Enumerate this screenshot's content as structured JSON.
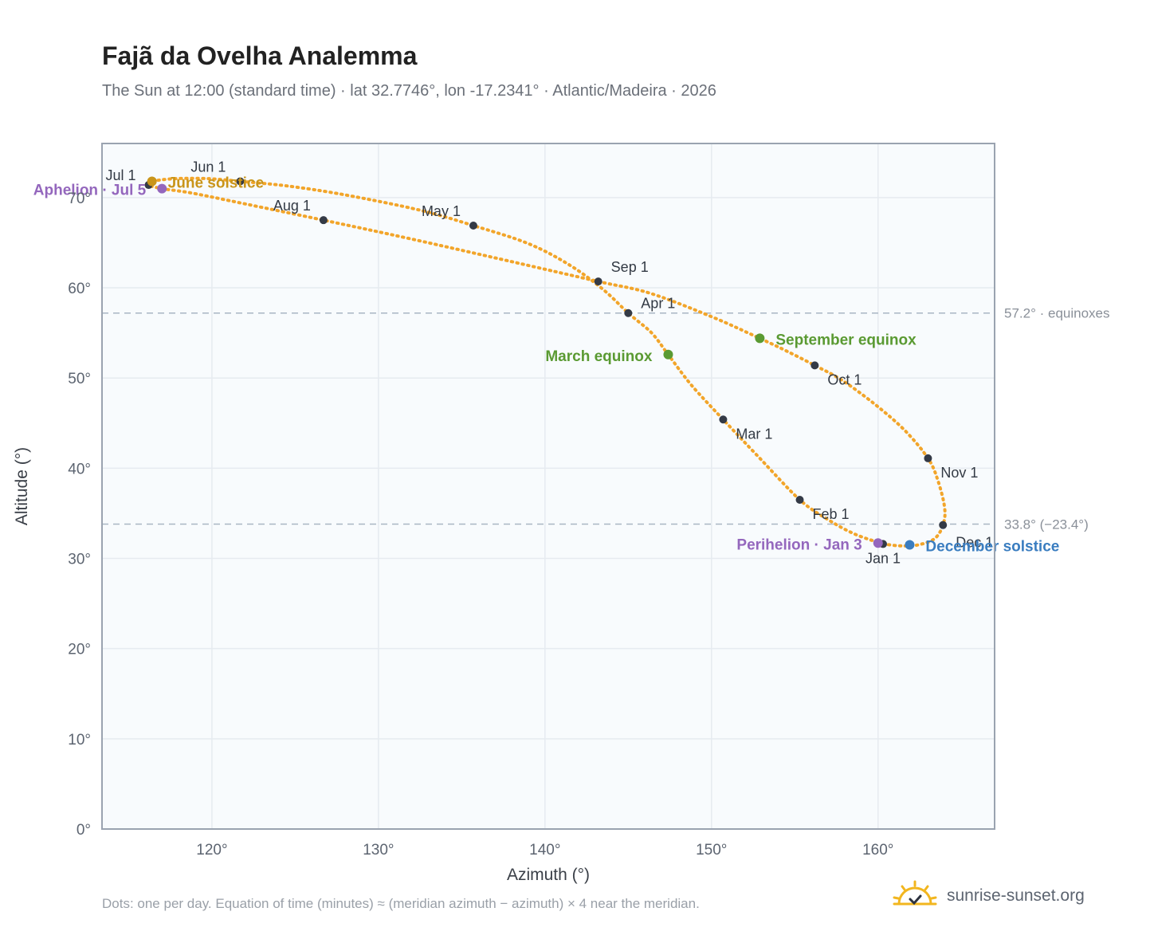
{
  "header": {
    "title": "Fajã da Ovelha Analemma",
    "subtitle": "The Sun at 12:00 (standard time) · lat 32.7746°, lon -17.2341° · Atlantic/Madeira · 2026"
  },
  "footer": {
    "note": "Dots: one per day. Equation of time (minutes) ≈ (meridian azimuth − azimuth) × 4 near the meridian.",
    "brand": "sunrise-sunset.org",
    "brand_icon": "sun-icon"
  },
  "colors": {
    "path": "#f2a52a",
    "month_dot": "#343a46",
    "equinox": "#5a9a32",
    "solstice_june": "#c9951a",
    "solstice_december": "#3a7dc0",
    "apsis": "#9467bd",
    "reference_line": "#a9b6c4",
    "plot_background": "#f8fbfd",
    "grid": "#e6ebf0"
  },
  "chart_data": {
    "type": "scatter",
    "title": "Fajã da Ovelha Analemma",
    "xlabel": "Azimuth (°)",
    "ylabel": "Altitude (°)",
    "xlim": [
      113.4,
      167
    ],
    "ylim": [
      0,
      76
    ],
    "x_ticks": [
      120,
      130,
      140,
      150,
      160
    ],
    "x_tick_labels": [
      "120°",
      "130°",
      "140°",
      "150°",
      "160°"
    ],
    "y_ticks": [
      0,
      10,
      20,
      30,
      40,
      50,
      60,
      70
    ],
    "y_tick_labels": [
      "0°",
      "10°",
      "20°",
      "30°",
      "40°",
      "50°",
      "60°",
      "70°"
    ],
    "grid": true,
    "path_points": [
      {
        "x": 160.3,
        "y": 31.6
      },
      {
        "x": 161.3,
        "y": 31.4
      },
      {
        "x": 162.4,
        "y": 31.5
      },
      {
        "x": 163.4,
        "y": 32.2
      },
      {
        "x": 163.9,
        "y": 33.7
      },
      {
        "x": 164.0,
        "y": 35.6
      },
      {
        "x": 163.6,
        "y": 38.6
      },
      {
        "x": 163.0,
        "y": 41.1
      },
      {
        "x": 161.6,
        "y": 44.2
      },
      {
        "x": 159.8,
        "y": 47.1
      },
      {
        "x": 157.8,
        "y": 49.8
      },
      {
        "x": 156.2,
        "y": 51.4
      },
      {
        "x": 154.5,
        "y": 53.0
      },
      {
        "x": 152.9,
        "y": 54.4
      },
      {
        "x": 150.0,
        "y": 56.8
      },
      {
        "x": 146.3,
        "y": 59.4
      },
      {
        "x": 143.2,
        "y": 60.7
      },
      {
        "x": 138.0,
        "y": 62.9
      },
      {
        "x": 132.0,
        "y": 65.4
      },
      {
        "x": 126.7,
        "y": 67.5
      },
      {
        "x": 122.0,
        "y": 69.3
      },
      {
        "x": 118.8,
        "y": 70.5
      },
      {
        "x": 117.0,
        "y": 71.0
      },
      {
        "x": 116.2,
        "y": 71.4
      },
      {
        "x": 116.4,
        "y": 71.8
      },
      {
        "x": 117.8,
        "y": 72.1
      },
      {
        "x": 119.8,
        "y": 72.1
      },
      {
        "x": 121.7,
        "y": 71.8
      },
      {
        "x": 124.5,
        "y": 71.3
      },
      {
        "x": 128.0,
        "y": 70.3
      },
      {
        "x": 132.5,
        "y": 68.6
      },
      {
        "x": 135.7,
        "y": 66.9
      },
      {
        "x": 139.0,
        "y": 64.9
      },
      {
        "x": 141.5,
        "y": 62.5
      },
      {
        "x": 143.5,
        "y": 59.8
      },
      {
        "x": 145.0,
        "y": 57.2
      },
      {
        "x": 146.4,
        "y": 55.0
      },
      {
        "x": 147.4,
        "y": 52.6
      },
      {
        "x": 148.8,
        "y": 49.2
      },
      {
        "x": 150.7,
        "y": 45.4
      },
      {
        "x": 152.9,
        "y": 41.1
      },
      {
        "x": 155.3,
        "y": 36.5
      },
      {
        "x": 157.0,
        "y": 34.3
      },
      {
        "x": 158.6,
        "y": 32.7
      },
      {
        "x": 160.3,
        "y": 31.6
      }
    ],
    "month_markers": [
      {
        "label": "Jan 1",
        "x": 160.3,
        "y": 31.6
      },
      {
        "label": "Feb 1",
        "x": 155.3,
        "y": 36.5
      },
      {
        "label": "Mar 1",
        "x": 150.7,
        "y": 45.4
      },
      {
        "label": "Apr 1",
        "x": 145.0,
        "y": 57.2
      },
      {
        "label": "May 1",
        "x": 135.7,
        "y": 66.9
      },
      {
        "label": "Jun 1",
        "x": 121.7,
        "y": 71.8
      },
      {
        "label": "Jul 1",
        "x": 116.2,
        "y": 71.4
      },
      {
        "label": "Aug 1",
        "x": 126.7,
        "y": 67.5
      },
      {
        "label": "Sep 1",
        "x": 143.2,
        "y": 60.7
      },
      {
        "label": "Oct 1",
        "x": 156.2,
        "y": 51.4
      },
      {
        "label": "Nov 1",
        "x": 163.0,
        "y": 41.1
      },
      {
        "label": "Dec 1",
        "x": 163.9,
        "y": 33.7
      }
    ],
    "events": [
      {
        "label": "March equinox",
        "x": 147.4,
        "y": 52.6,
        "kind": "equinox"
      },
      {
        "label": "September equinox",
        "x": 152.9,
        "y": 54.4,
        "kind": "equinox"
      },
      {
        "label": "June solstice",
        "x": 116.4,
        "y": 71.8,
        "kind": "solstice_june"
      },
      {
        "label": "December solstice",
        "x": 161.9,
        "y": 31.5,
        "kind": "solstice_december"
      },
      {
        "label": "Aphelion · Jul 5",
        "x": 117.0,
        "y": 71.0,
        "kind": "apsis"
      },
      {
        "label": "Perihelion · Jan 3",
        "x": 160.0,
        "y": 31.7,
        "kind": "apsis"
      }
    ],
    "reference_lines": [
      {
        "y": 57.2,
        "label": "57.2° · equinoxes"
      },
      {
        "y": 33.8,
        "label": "33.8° (−23.4°)"
      }
    ]
  }
}
